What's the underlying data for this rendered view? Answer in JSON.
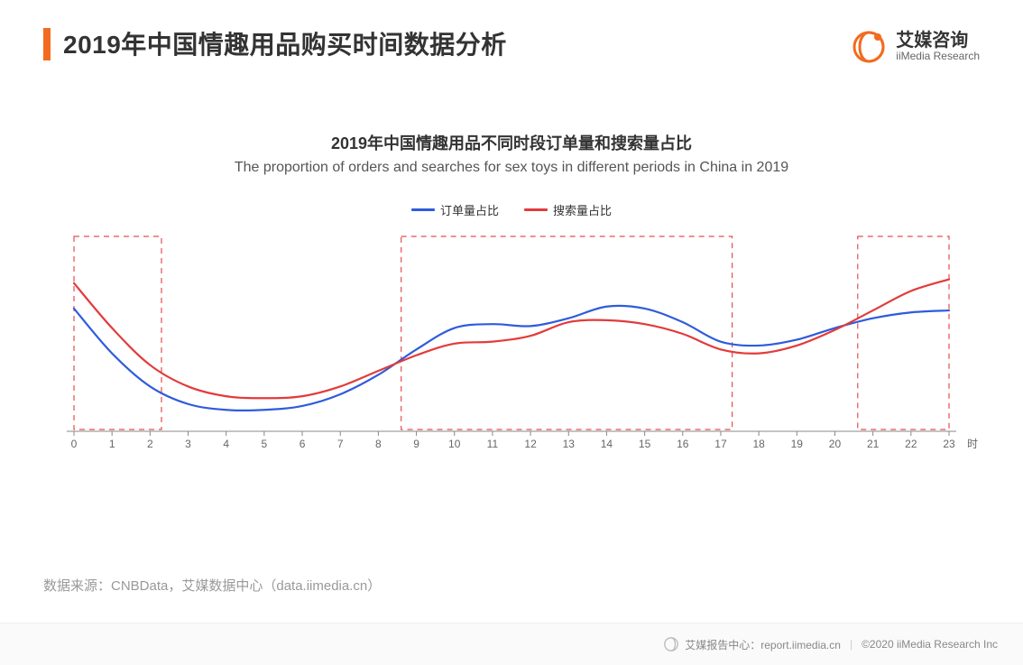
{
  "header": {
    "title": "2019年中国情趣用品购买时间数据分析",
    "accent_color": "#f26b1f",
    "brand": {
      "cn": "艾媒咨询",
      "en": "iiMedia Research",
      "icon_color": "#f26b1f"
    }
  },
  "chart": {
    "type": "line",
    "title_cn": "2019年中国情趣用品不同时段订单量和搜索量占比",
    "title_en": "The proportion of orders and searches for sex toys in different periods in China in 2019",
    "title_fontsize_cn": 18,
    "title_fontsize_en": 16,
    "background_color": "#ffffff",
    "axis_color": "#888888",
    "axis_label_color": "#666666",
    "axis_label_fontsize": 12,
    "xlim": [
      0,
      23
    ],
    "ylim": [
      0,
      10
    ],
    "x_ticks": [
      0,
      1,
      2,
      3,
      4,
      5,
      6,
      7,
      8,
      9,
      10,
      11,
      12,
      13,
      14,
      15,
      16,
      17,
      18,
      19,
      20,
      21,
      22,
      23
    ],
    "x_axis_unit_label": "时",
    "legend": {
      "items": [
        {
          "label": "订单量占比",
          "color": "#2f5bdc"
        },
        {
          "label": "搜索量占比",
          "color": "#e23b3b"
        }
      ]
    },
    "series": [
      {
        "name": "orders",
        "label": "订单量占比",
        "color": "#2f5bdc",
        "line_width": 2.2,
        "values": [
          6.3,
          4.0,
          2.3,
          1.4,
          1.1,
          1.1,
          1.3,
          1.9,
          2.9,
          4.2,
          5.3,
          5.5,
          5.4,
          5.8,
          6.4,
          6.3,
          5.6,
          4.6,
          4.4,
          4.7,
          5.3,
          5.8,
          6.1,
          6.2
        ]
      },
      {
        "name": "searches",
        "label": "搜索量占比",
        "color": "#e23b3b",
        "line_width": 2.2,
        "values": [
          7.6,
          5.3,
          3.4,
          2.3,
          1.8,
          1.7,
          1.8,
          2.3,
          3.1,
          3.9,
          4.5,
          4.6,
          4.9,
          5.6,
          5.7,
          5.5,
          5.0,
          4.2,
          4.0,
          4.4,
          5.2,
          6.2,
          7.2,
          7.8
        ]
      }
    ],
    "highlight_boxes": {
      "color": "#e23b3b",
      "dash": "6 5",
      "stroke_width": 1.2,
      "opacity": 0.9,
      "ranges_x": [
        [
          0,
          2.3
        ],
        [
          8.6,
          17.3
        ],
        [
          20.6,
          23
        ]
      ]
    }
  },
  "footer": {
    "source_label": "数据来源：CNBData，艾媒数据中心（data.iimedia.cn）",
    "report_center": "艾媒报告中心：report.iimedia.cn",
    "copyright": "©2020  iiMedia Research  Inc"
  }
}
